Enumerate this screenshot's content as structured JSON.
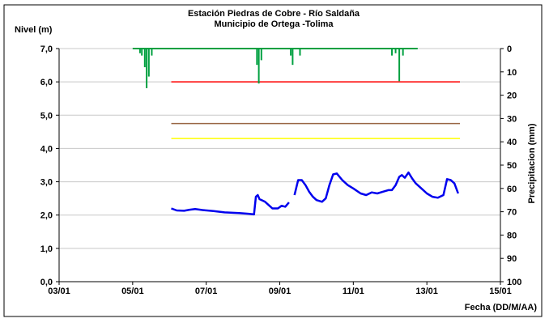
{
  "chart_data": {
    "type": "line",
    "title": "Estación Piedras de Cobre  - Río Saldaña",
    "subtitle": "Municipio de Ortega -Tolima",
    "ylabel": "Nivel (m)",
    "y2label": "Precipitacion (mm)",
    "xlabel": "Fecha (DD/M/AA)",
    "ylim": [
      0,
      7
    ],
    "y2lim": [
      0,
      100
    ],
    "y2_inverted": true,
    "xlim": [
      3,
      15
    ],
    "x_ticks": [
      "03/01",
      "05/01",
      "07/01",
      "09/01",
      "11/01",
      "13/01",
      "15/01"
    ],
    "y_ticks": [
      "0,0",
      "1,0",
      "2,0",
      "3,0",
      "4,0",
      "5,0",
      "6,0",
      "7,0"
    ],
    "y2_ticks": [
      "0",
      "10",
      "20",
      "30",
      "40",
      "50",
      "60",
      "70",
      "80",
      "90",
      "100"
    ],
    "grid": "horizontal",
    "colors": {
      "level": "#0000ee",
      "precip": "#00a040",
      "threshold_red": "#ff0000",
      "threshold_brown": "#996644",
      "threshold_yellow": "#ffff00"
    },
    "thresholds": [
      {
        "value": 6.0,
        "x_start": 6.05,
        "x_end": 13.9,
        "color": "#ff0000"
      },
      {
        "value": 4.75,
        "x_start": 6.05,
        "x_end": 13.9,
        "color": "#996644"
      },
      {
        "value": 4.3,
        "x_start": 6.05,
        "x_end": 13.9,
        "color": "#ffff00"
      }
    ],
    "level_series": [
      [
        [
          6.05,
          2.2
        ],
        [
          6.2,
          2.14
        ],
        [
          6.4,
          2.13
        ],
        [
          6.55,
          2.16
        ],
        [
          6.7,
          2.18
        ],
        [
          6.9,
          2.15
        ],
        [
          7.2,
          2.12
        ],
        [
          7.5,
          2.08
        ],
        [
          7.9,
          2.06
        ],
        [
          8.15,
          2.04
        ],
        [
          8.3,
          2.02
        ],
        [
          8.35,
          2.55
        ],
        [
          8.4,
          2.6
        ],
        [
          8.45,
          2.48
        ],
        [
          8.6,
          2.4
        ],
        [
          8.7,
          2.3
        ],
        [
          8.8,
          2.2
        ],
        [
          8.95,
          2.2
        ],
        [
          9.05,
          2.28
        ],
        [
          9.15,
          2.25
        ],
        [
          9.25,
          2.38
        ]
      ],
      [
        [
          9.4,
          2.6
        ],
        [
          9.5,
          3.05
        ],
        [
          9.6,
          3.05
        ],
        [
          9.7,
          2.9
        ],
        [
          9.8,
          2.7
        ],
        [
          9.9,
          2.55
        ],
        [
          10.0,
          2.45
        ],
        [
          10.15,
          2.4
        ],
        [
          10.25,
          2.5
        ],
        [
          10.35,
          2.9
        ],
        [
          10.45,
          3.22
        ],
        [
          10.55,
          3.25
        ],
        [
          10.7,
          3.05
        ],
        [
          10.85,
          2.9
        ],
        [
          11.0,
          2.8
        ],
        [
          11.2,
          2.65
        ],
        [
          11.35,
          2.6
        ],
        [
          11.5,
          2.68
        ],
        [
          11.65,
          2.65
        ],
        [
          11.8,
          2.7
        ],
        [
          11.95,
          2.75
        ],
        [
          12.05,
          2.75
        ],
        [
          12.15,
          2.9
        ],
        [
          12.25,
          3.15
        ],
        [
          12.32,
          3.2
        ],
        [
          12.4,
          3.12
        ],
        [
          12.5,
          3.28
        ],
        [
          12.6,
          3.1
        ],
        [
          12.7,
          2.95
        ],
        [
          12.85,
          2.8
        ],
        [
          13.0,
          2.65
        ],
        [
          13.15,
          2.55
        ],
        [
          13.3,
          2.52
        ],
        [
          13.45,
          2.6
        ],
        [
          13.55,
          3.08
        ],
        [
          13.65,
          3.05
        ],
        [
          13.75,
          2.95
        ],
        [
          13.85,
          2.65
        ]
      ]
    ],
    "precip_series": {
      "baseline_x": [
        5.0,
        12.75
      ],
      "bars": [
        [
          5.2,
          2
        ],
        [
          5.25,
          3
        ],
        [
          5.33,
          8
        ],
        [
          5.38,
          17
        ],
        [
          5.44,
          12
        ],
        [
          5.52,
          3
        ],
        [
          8.38,
          7
        ],
        [
          8.43,
          15
        ],
        [
          8.5,
          5
        ],
        [
          9.3,
          3
        ],
        [
          9.35,
          7
        ],
        [
          9.55,
          3
        ],
        [
          12.05,
          3
        ],
        [
          12.15,
          2
        ],
        [
          12.25,
          14
        ],
        [
          12.35,
          3
        ]
      ]
    }
  }
}
